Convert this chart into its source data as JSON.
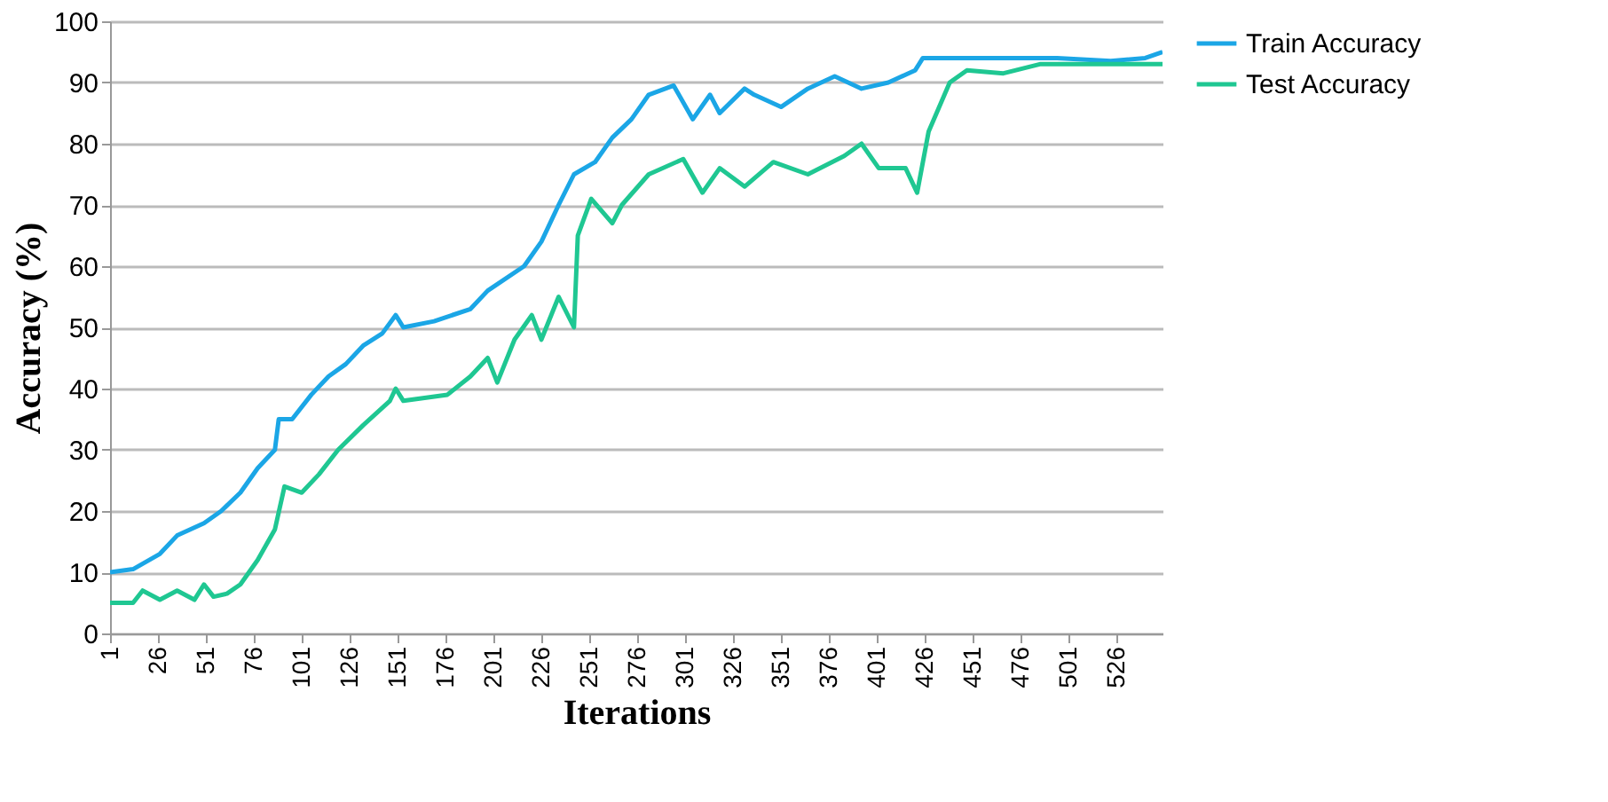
{
  "chart_data": {
    "type": "line",
    "xlabel": "Iterations",
    "ylabel": "Accuracy (%)",
    "xlim": [
      1,
      550
    ],
    "xticks": [
      1,
      26,
      51,
      76,
      101,
      126,
      151,
      176,
      201,
      226,
      251,
      276,
      301,
      326,
      351,
      376,
      401,
      426,
      451,
      476,
      501,
      526
    ],
    "ylim": [
      0,
      100
    ],
    "yticks": [
      0,
      10,
      20,
      30,
      40,
      50,
      60,
      70,
      80,
      90,
      100
    ],
    "grid": "y",
    "legend": "right",
    "marker": "none",
    "line_style": "solid",
    "series": [
      {
        "name": "Train Accuracy",
        "color": "#1ba6e6",
        "x": [
          1,
          13,
          27,
          36,
          50,
          59,
          69,
          78,
          87,
          89,
          96,
          106,
          115,
          124,
          133,
          143,
          150,
          154,
          170,
          189,
          198,
          217,
          226,
          235,
          243,
          254,
          263,
          273,
          282,
          295,
          305,
          314,
          319,
          332,
          337,
          351,
          365,
          379,
          393,
          407,
          421,
          425,
          439,
          467,
          495,
          523,
          541,
          550
        ],
        "values": [
          10,
          10.5,
          13,
          16,
          18,
          20,
          23,
          27,
          30,
          35,
          35,
          39,
          42,
          44,
          47,
          49,
          52,
          50,
          51,
          53,
          56,
          60,
          64,
          70,
          75,
          77,
          81,
          84,
          88,
          89.5,
          84,
          88,
          85,
          89,
          88,
          86,
          89,
          91,
          89,
          90,
          92,
          94,
          94,
          94,
          94,
          93.5,
          94,
          95
        ]
      },
      {
        "name": "Test Accuracy",
        "color": "#1fc792",
        "x": [
          1,
          13,
          18,
          27,
          36,
          45,
          50,
          55,
          62,
          69,
          78,
          87,
          92,
          101,
          110,
          120,
          133,
          147,
          150,
          154,
          177,
          189,
          198,
          203,
          212,
          221,
          226,
          235,
          243,
          245,
          252,
          263,
          268,
          282,
          300,
          310,
          319,
          332,
          347,
          365,
          384,
          393,
          402,
          416,
          422,
          428,
          439,
          448,
          467,
          486,
          514,
          550
        ],
        "values": [
          5,
          5,
          7,
          5.5,
          7,
          5.5,
          8,
          6,
          6.5,
          8,
          12,
          17,
          24,
          23,
          26,
          30,
          34,
          38,
          40,
          38,
          39,
          42,
          45,
          41,
          48,
          52,
          48,
          55,
          50,
          65,
          71,
          67,
          70,
          75,
          77.5,
          72,
          76,
          73,
          77,
          75,
          78,
          80,
          76,
          76,
          72,
          82,
          90,
          92,
          91.5,
          93,
          93,
          93
        ]
      }
    ]
  }
}
